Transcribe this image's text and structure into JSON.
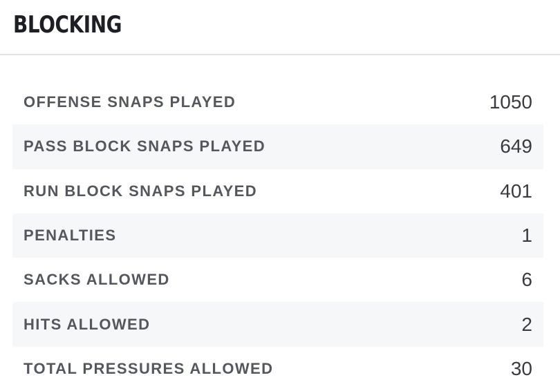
{
  "header": {
    "title": "BLOCKING"
  },
  "stats": [
    {
      "label": "OFFENSE SNAPS PLAYED",
      "value": "1050"
    },
    {
      "label": "PASS BLOCK SNAPS PLAYED",
      "value": "649"
    },
    {
      "label": "RUN BLOCK SNAPS PLAYED",
      "value": "401"
    },
    {
      "label": "PENALTIES",
      "value": "1"
    },
    {
      "label": "SACKS ALLOWED",
      "value": "6"
    },
    {
      "label": "HITS ALLOWED",
      "value": "2"
    },
    {
      "label": "TOTAL PRESSURES ALLOWED",
      "value": "30"
    }
  ]
}
